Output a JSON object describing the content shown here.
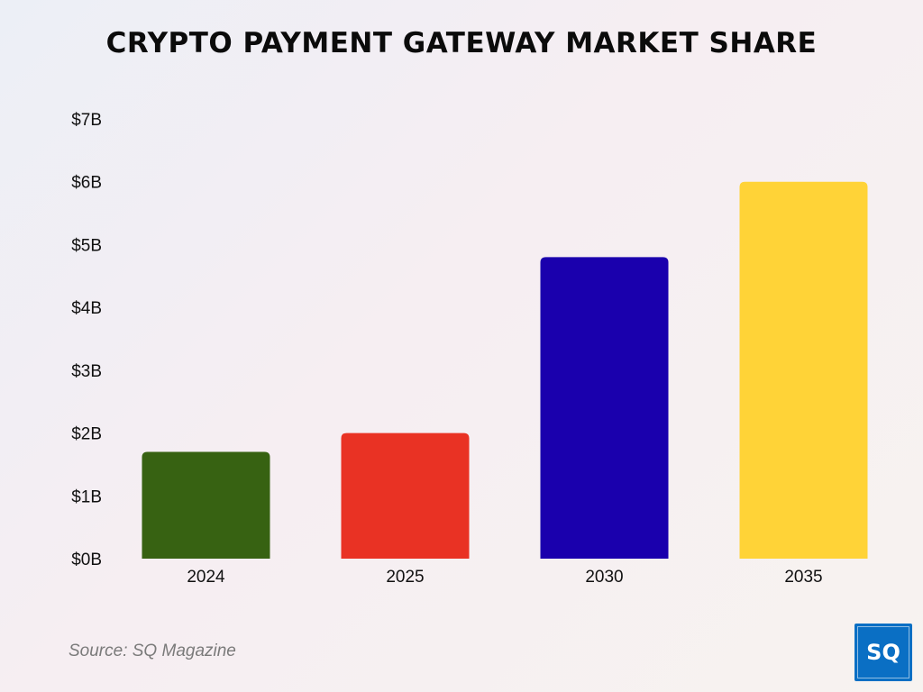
{
  "title": "CRYPTO PAYMENT GATEWAY MARKET SHARE",
  "source": "Source: SQ Magazine",
  "logo": {
    "text": "SQ",
    "color": "#0a6fc4"
  },
  "chart_data": {
    "type": "bar",
    "title": "CRYPTO PAYMENT GATEWAY MARKET SHARE",
    "xlabel": "",
    "ylabel": "",
    "categories": [
      "2024",
      "2025",
      "2030",
      "2035"
    ],
    "values": [
      1.7,
      2.0,
      4.8,
      6.0
    ],
    "colors": [
      "#376212",
      "#e93224",
      "#1a00ad",
      "#ffd337"
    ],
    "ylim": [
      0,
      7
    ],
    "yticks": [
      {
        "value": 0,
        "label": "$0B"
      },
      {
        "value": 1,
        "label": "$1B"
      },
      {
        "value": 2,
        "label": "$2B"
      },
      {
        "value": 3,
        "label": "$3B"
      },
      {
        "value": 4,
        "label": "$4B"
      },
      {
        "value": 5,
        "label": "$5B"
      },
      {
        "value": 6,
        "label": "$6B"
      },
      {
        "value": 7,
        "label": "$7B"
      }
    ],
    "grid": false,
    "legend": "none"
  }
}
